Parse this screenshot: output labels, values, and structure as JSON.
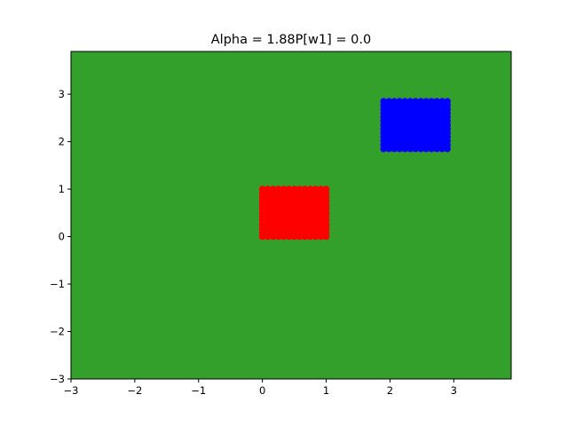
{
  "chart_data": {
    "type": "scatter",
    "title": "Alpha = 1.88P[w1] = 0.0",
    "xlabel": "",
    "ylabel": "",
    "xlim": [
      -3,
      3.9
    ],
    "ylim": [
      -3,
      3.9
    ],
    "x_ticks": [
      -3,
      -2,
      -1,
      0,
      1,
      2,
      3
    ],
    "y_ticks": [
      -3,
      -2,
      -1,
      0,
      1,
      2,
      3
    ],
    "x_tick_labels": [
      "−3",
      "−2",
      "−1",
      "0",
      "1",
      "2",
      "3"
    ],
    "y_tick_labels": [
      "−3",
      "−2",
      "−1",
      "0",
      "1",
      "2",
      "3"
    ],
    "background_color": "#33a02c",
    "grid": false,
    "series": [
      {
        "color": "#ff0000",
        "x_range": [
          0,
          1
        ],
        "y_range": [
          0,
          1
        ]
      },
      {
        "color": "#0000ff",
        "x_range": [
          1.9,
          2.9
        ],
        "y_range": [
          1.85,
          2.85
        ]
      }
    ]
  }
}
